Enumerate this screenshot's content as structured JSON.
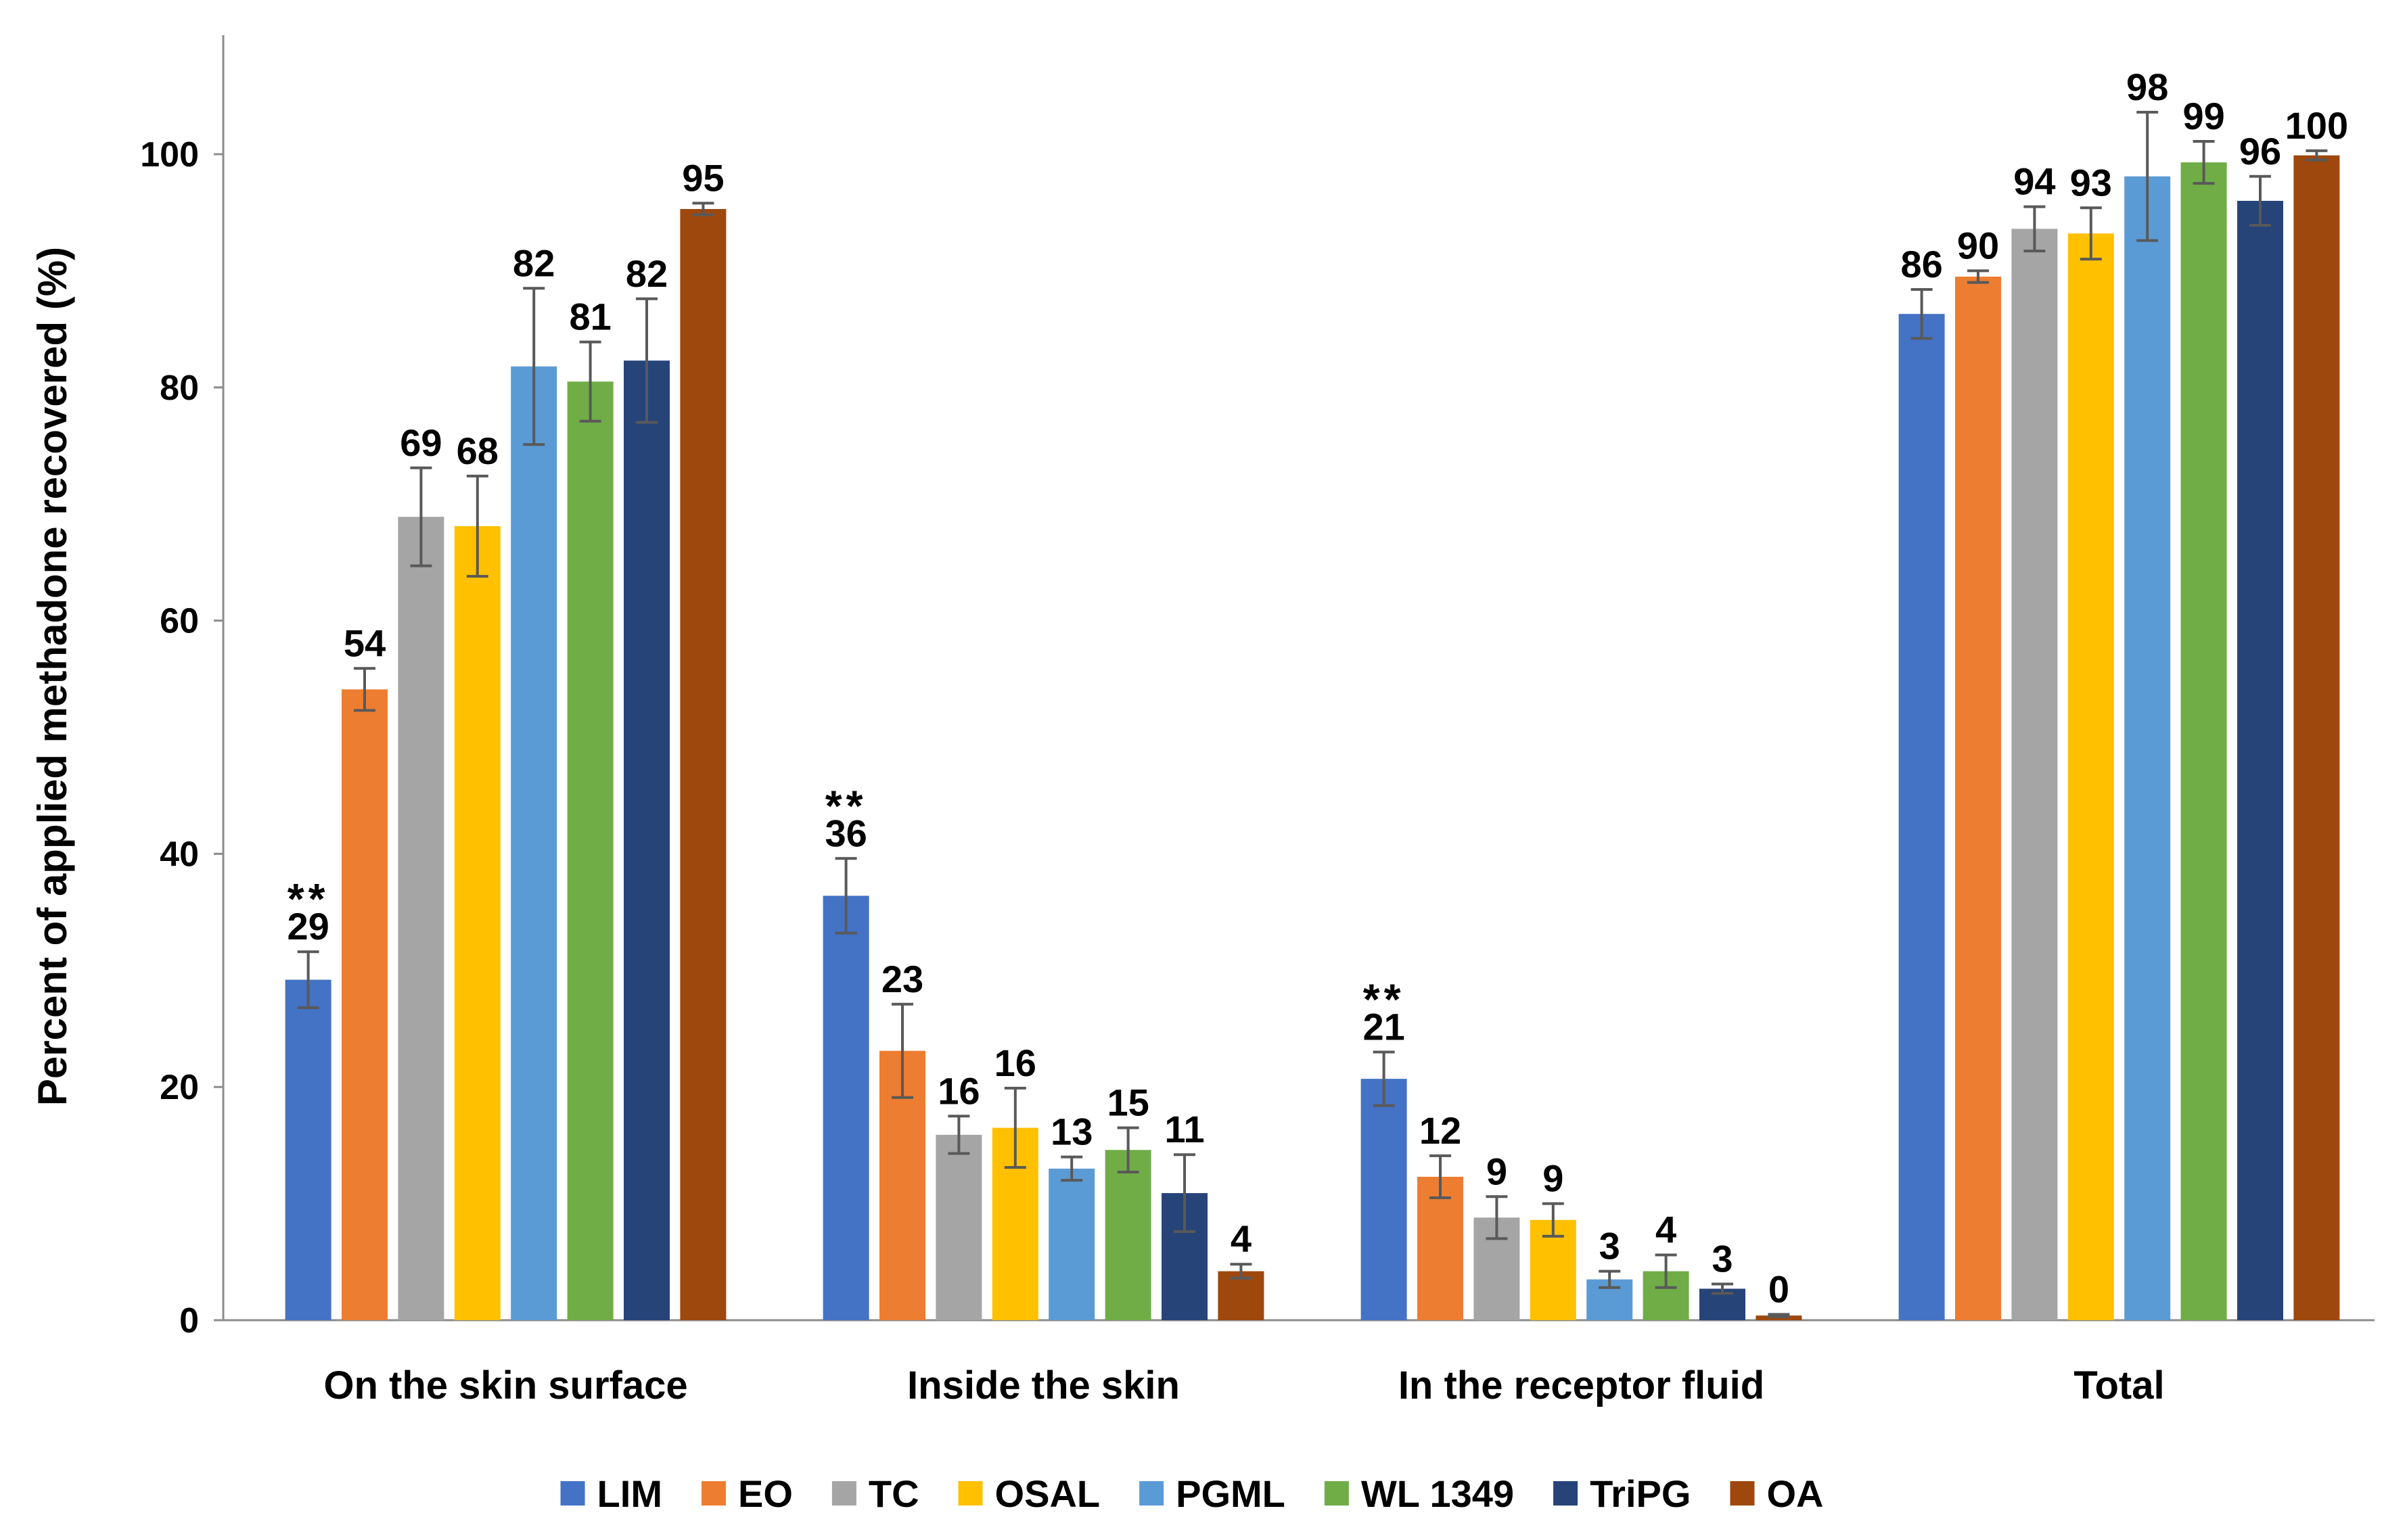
{
  "chart_data": {
    "type": "bar",
    "title": "",
    "xlabel": "",
    "ylabel": "Percent of applied methadone recovered (%)",
    "ylim": [
      0,
      110
    ],
    "yticks": [
      0,
      20,
      40,
      60,
      80,
      100
    ],
    "grid": false,
    "legend_position": "bottom",
    "categories": [
      "On the skin surface",
      "Inside the skin",
      "In the receptor fluid",
      "Total"
    ],
    "series": [
      {
        "name": "LIM",
        "color": "#4472C4",
        "values": [
          29.2,
          36.4,
          20.7,
          86.3
        ],
        "errors": [
          2.4,
          3.2,
          2.3,
          2.1
        ],
        "labels": [
          "29",
          "36",
          "21",
          "86"
        ],
        "annotations": [
          "**",
          "**",
          "**",
          ""
        ]
      },
      {
        "name": "EO",
        "color": "#ED7D31",
        "values": [
          54.1,
          23.1,
          12.3,
          89.5
        ],
        "errors": [
          1.8,
          4.0,
          1.8,
          0.5
        ],
        "labels": [
          "54",
          "23",
          "12",
          "90"
        ],
        "annotations": [
          "",
          "",
          "",
          ""
        ]
      },
      {
        "name": "TC",
        "color": "#A5A5A5",
        "values": [
          68.9,
          15.9,
          8.8,
          93.6
        ],
        "errors": [
          4.2,
          1.6,
          1.8,
          1.9
        ],
        "labels": [
          "69",
          "16",
          "9",
          "94"
        ],
        "annotations": [
          "",
          "",
          "",
          ""
        ]
      },
      {
        "name": "OSAL",
        "color": "#FFC000",
        "values": [
          68.1,
          16.5,
          8.6,
          93.2
        ],
        "errors": [
          4.3,
          3.4,
          1.4,
          2.2
        ],
        "labels": [
          "68",
          "16",
          "9",
          "93"
        ],
        "annotations": [
          "",
          "",
          "",
          ""
        ]
      },
      {
        "name": "PGML",
        "color": "#5B9BD5",
        "values": [
          81.8,
          13.0,
          3.5,
          98.1
        ],
        "errors": [
          6.7,
          1.0,
          0.7,
          5.5
        ],
        "labels": [
          "82",
          "13",
          "3",
          "98"
        ],
        "annotations": [
          "",
          "",
          "",
          ""
        ]
      },
      {
        "name": "WL 1349",
        "color": "#70AD47",
        "values": [
          80.5,
          14.6,
          4.2,
          99.3
        ],
        "errors": [
          3.4,
          1.9,
          1.4,
          1.8
        ],
        "labels": [
          "81",
          "15",
          "4",
          "99"
        ],
        "annotations": [
          "",
          "",
          "",
          ""
        ]
      },
      {
        "name": "TriPG",
        "color": "#264478",
        "values": [
          82.3,
          10.9,
          2.7,
          96.0
        ],
        "errors": [
          5.3,
          3.3,
          0.4,
          2.1
        ],
        "labels": [
          "82",
          "11",
          "3",
          "96"
        ],
        "annotations": [
          "",
          "",
          "",
          ""
        ]
      },
      {
        "name": "OA",
        "color": "#9E480E",
        "values": [
          95.3,
          4.2,
          0.4,
          99.9
        ],
        "errors": [
          0.5,
          0.6,
          0.1,
          0.4
        ],
        "labels": [
          "95",
          "4",
          "0",
          "100"
        ],
        "annotations": [
          "",
          "",
          "",
          ""
        ]
      }
    ]
  }
}
